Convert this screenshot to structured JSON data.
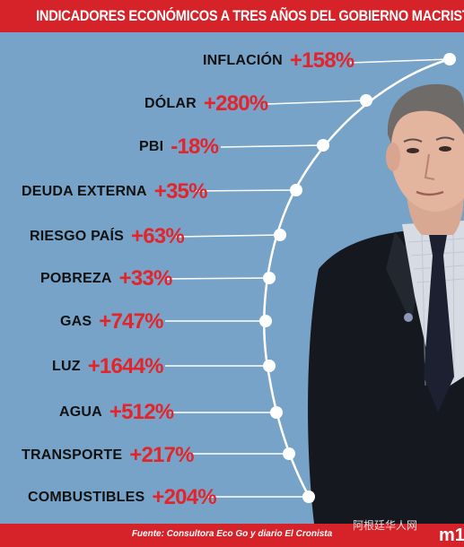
{
  "title": "INDICADORES ECONÓMICOS A TRES AÑOS DEL GOBIERNO MACRISTA",
  "indicators": [
    {
      "label": "INFLACIÓN",
      "value": "+158%"
    },
    {
      "label": "DÓLAR",
      "value": "+280%"
    },
    {
      "label": "PBI",
      "value": "-18%"
    },
    {
      "label": "DEUDA EXTERNA",
      "value": "+35%"
    },
    {
      "label": "RIESGO PAÍS",
      "value": "+63%"
    },
    {
      "label": "POBREZA",
      "value": "+33%"
    },
    {
      "label": "GAS",
      "value": "+747%"
    },
    {
      "label": "LUZ",
      "value": "+1644%"
    },
    {
      "label": "AGUA",
      "value": "+512%"
    },
    {
      "label": "TRANSPORTE",
      "value": "+217%"
    },
    {
      "label": "COMBUSTIBLES",
      "value": "+204%"
    }
  ],
  "source": "Fuente: Consultora Eco Go y diario El Cronista",
  "brand": "m1",
  "watermark": "阿根廷华人网",
  "colors": {
    "background": "#77a3c8",
    "header": "#d6232a",
    "value": "#e3242b"
  }
}
